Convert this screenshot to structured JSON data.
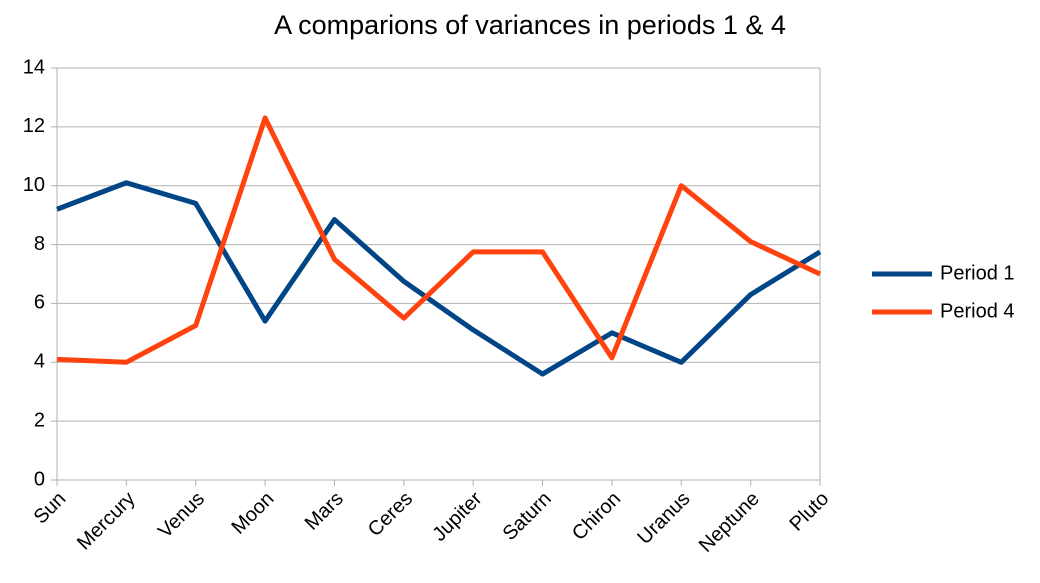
{
  "chart_data": {
    "type": "line",
    "title": "A comparions of variances in periods 1 & 4",
    "categories": [
      "Sun",
      "Mercury",
      "Venus",
      "Moon",
      "Mars",
      "Ceres",
      "Jupiter",
      "Saturn",
      "Chiron",
      "Uranus",
      "Neptune",
      "Pluto"
    ],
    "series": [
      {
        "name": "Period 1",
        "color": "#004586",
        "values": [
          9.2,
          10.1,
          9.4,
          5.4,
          8.85,
          6.75,
          5.1,
          3.6,
          5.0,
          4.0,
          6.3,
          7.75
        ]
      },
      {
        "name": "Period 4",
        "color": "#ff420e",
        "values": [
          4.1,
          4.0,
          5.25,
          12.3,
          7.5,
          5.5,
          7.75,
          7.75,
          4.15,
          10.0,
          8.1,
          7.0
        ]
      }
    ],
    "ylim": [
      0,
      14
    ],
    "yticks": [
      0,
      2,
      4,
      6,
      8,
      10,
      12,
      14
    ],
    "grid": true,
    "legend": "right"
  }
}
